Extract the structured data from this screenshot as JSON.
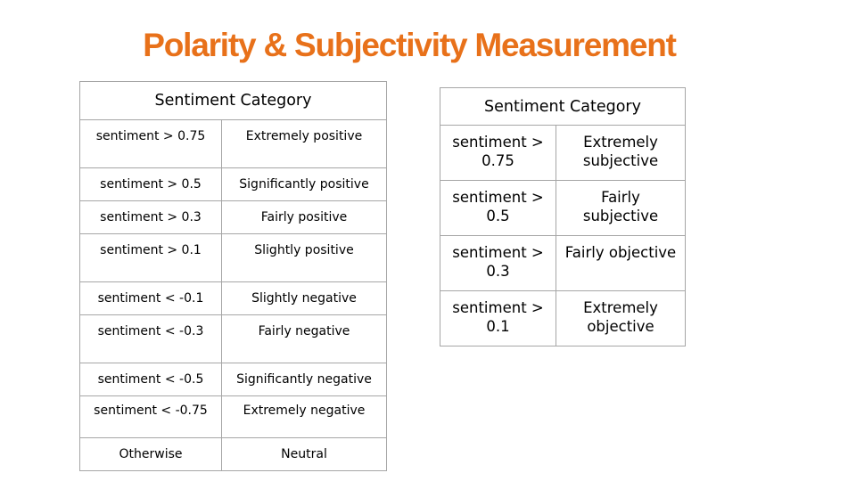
{
  "title": "Polarity & Subjectivity Measurement",
  "polarity_table": {
    "header": "Sentiment Category",
    "rows": [
      {
        "condition": "sentiment > 0.75",
        "category": "Extremely positive"
      },
      {
        "condition": "sentiment > 0.5",
        "category": "Significantly positive"
      },
      {
        "condition": "sentiment > 0.3",
        "category": "Fairly positive"
      },
      {
        "condition": "sentiment > 0.1",
        "category": "Slightly positive"
      },
      {
        "condition": "sentiment < -0.1",
        "category": "Slightly negative"
      },
      {
        "condition": "sentiment < -0.3",
        "category": "Fairly negative"
      },
      {
        "condition": "sentiment < -0.5",
        "category": "Significantly negative"
      },
      {
        "condition": "sentiment < -0.75",
        "category": "Extremely negative"
      },
      {
        "condition": "Otherwise",
        "category": "Neutral"
      }
    ]
  },
  "subjectivity_table": {
    "header": "Sentiment Category",
    "rows": [
      {
        "condition": "sentiment > 0.75",
        "category": "Extremely subjective"
      },
      {
        "condition": "sentiment > 0.5",
        "category": "Fairly subjective"
      },
      {
        "condition": "sentiment > 0.3",
        "category": "Fairly objective"
      },
      {
        "condition": "sentiment > 0.1",
        "category": "Extremely objective"
      }
    ]
  },
  "colors": {
    "title": "#e8711a",
    "border": "#a6a6a6"
  }
}
